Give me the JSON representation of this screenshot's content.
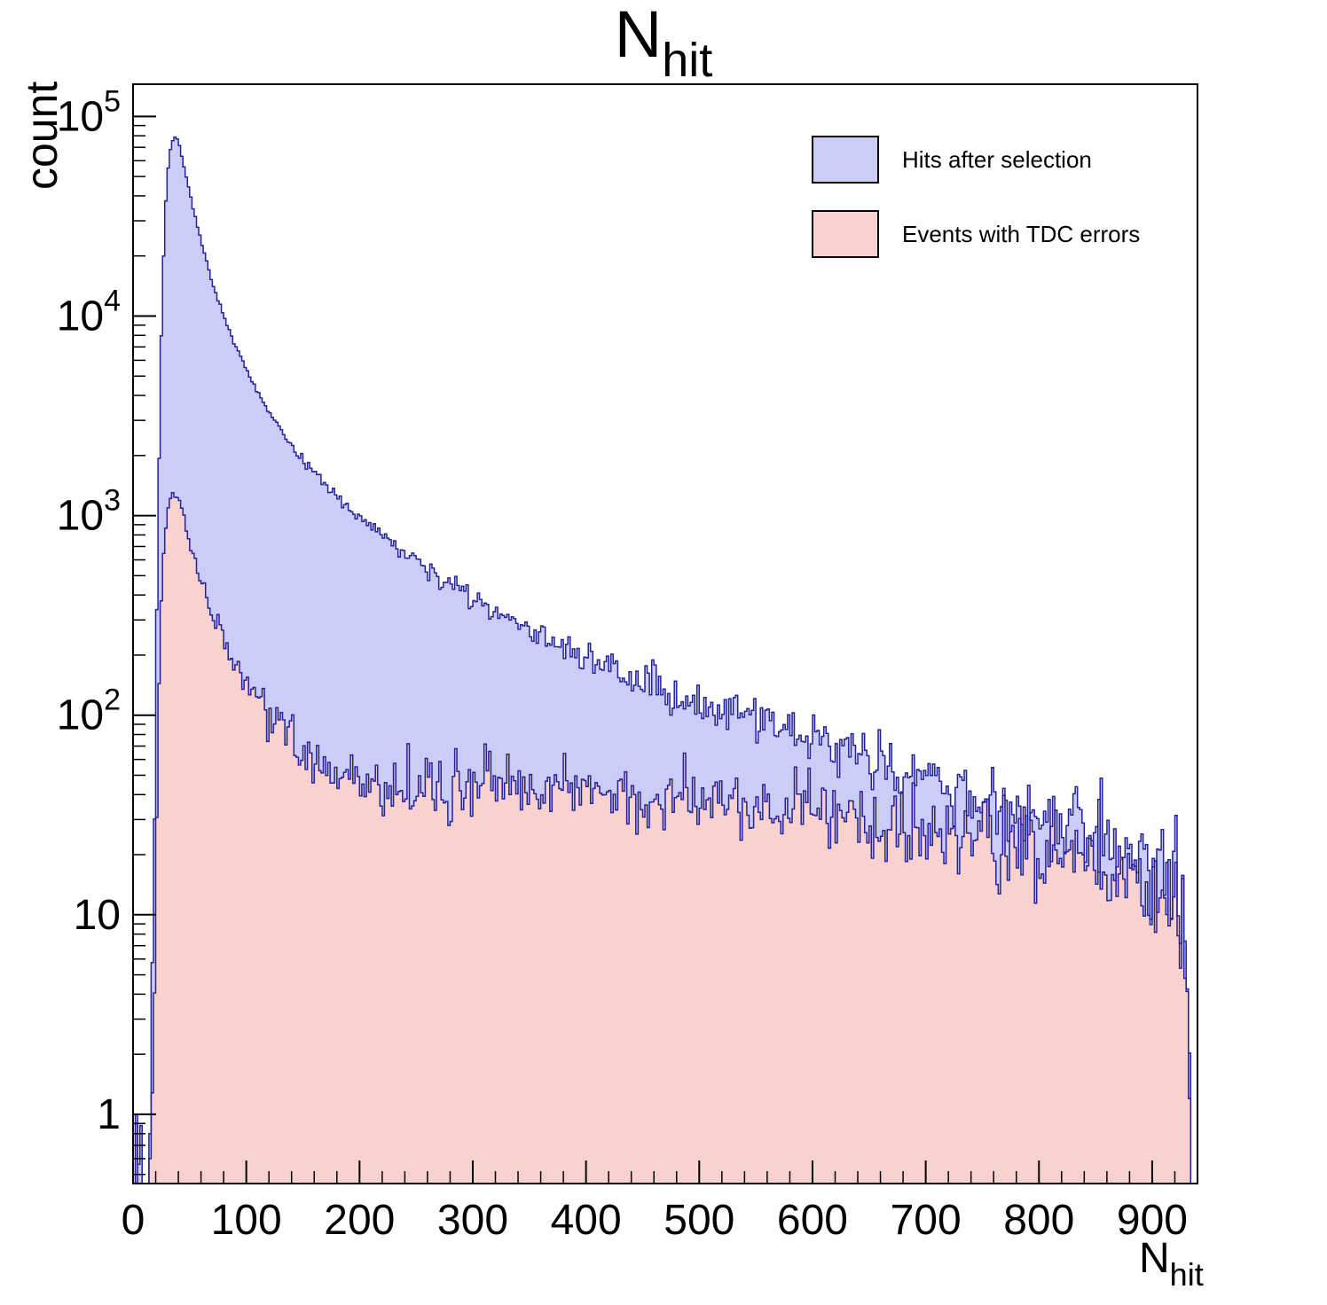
{
  "chart_data": {
    "type": "area",
    "subtype": "step_histogram",
    "title_main": "N",
    "title_sub": "hit",
    "xlabel_main": "N",
    "xlabel_sub": "hit",
    "ylabel": "count",
    "yscale": "log",
    "grid": false,
    "xlim": [
      0,
      940
    ],
    "ylim": [
      0.45,
      145000
    ],
    "x_ticks": [
      0,
      100,
      200,
      300,
      400,
      500,
      600,
      700,
      800,
      900
    ],
    "x_minor_step": 20,
    "y_ticks": [
      {
        "value": 1,
        "label": "1"
      },
      {
        "value": 10,
        "label": "10"
      },
      {
        "value": 100,
        "label": "10",
        "exp": "2"
      },
      {
        "value": 1000,
        "label": "10",
        "exp": "3"
      },
      {
        "value": 10000,
        "label": "10",
        "exp": "4"
      },
      {
        "value": 100000,
        "label": "10",
        "exp": "5"
      }
    ],
    "bin_width": 2,
    "noise": {
      "model": "poisson",
      "scale": 1.25,
      "clamp": 2.8
    },
    "legend_position": "top-right",
    "legend": [
      {
        "label": "Hits after selection",
        "fill": "#ccccf8",
        "line": "#22229b"
      },
      {
        "label": "Events with TDC errors",
        "fill": "#f9d1cf",
        "line": "#22229b"
      }
    ],
    "series": [
      {
        "name": "Hits after selection",
        "fill": "#ccccf8",
        "line": "#22229b",
        "seed": 1013,
        "anchors": [
          [
            2,
            0.45
          ],
          [
            3,
            1.0
          ],
          [
            4,
            0.45
          ],
          [
            8,
            1.1
          ],
          [
            9,
            0.45
          ],
          [
            14,
            0.45
          ],
          [
            15,
            0.8
          ],
          [
            17,
            3
          ],
          [
            19,
            30
          ],
          [
            21,
            300
          ],
          [
            23,
            2000
          ],
          [
            25,
            8000
          ],
          [
            27,
            20000
          ],
          [
            29,
            38000
          ],
          [
            31,
            55000
          ],
          [
            33,
            68000
          ],
          [
            35,
            76000
          ],
          [
            37,
            79000
          ],
          [
            39,
            77000
          ],
          [
            41,
            71000
          ],
          [
            43,
            63000
          ],
          [
            45,
            56000
          ],
          [
            47,
            50000
          ],
          [
            50,
            42000
          ],
          [
            53,
            35000
          ],
          [
            56,
            29500
          ],
          [
            60,
            24000
          ],
          [
            64,
            19500
          ],
          [
            68,
            16000
          ],
          [
            72,
            13500
          ],
          [
            76,
            11500
          ],
          [
            80,
            10000
          ],
          [
            85,
            8400
          ],
          [
            90,
            7200
          ],
          [
            95,
            6200
          ],
          [
            100,
            5400
          ],
          [
            110,
            4100
          ],
          [
            120,
            3300
          ],
          [
            130,
            2700
          ],
          [
            140,
            2250
          ],
          [
            150,
            1900
          ],
          [
            160,
            1650
          ],
          [
            170,
            1430
          ],
          [
            180,
            1250
          ],
          [
            190,
            1100
          ],
          [
            200,
            980
          ],
          [
            210,
            880
          ],
          [
            220,
            800
          ],
          [
            230,
            720
          ],
          [
            240,
            650
          ],
          [
            250,
            590
          ],
          [
            260,
            540
          ],
          [
            270,
            500
          ],
          [
            280,
            460
          ],
          [
            290,
            420
          ],
          [
            300,
            390
          ],
          [
            320,
            335
          ],
          [
            340,
            290
          ],
          [
            360,
            252
          ],
          [
            380,
            222
          ],
          [
            400,
            196
          ],
          [
            420,
            174
          ],
          [
            440,
            156
          ],
          [
            460,
            140
          ],
          [
            480,
            126
          ],
          [
            500,
            114
          ],
          [
            520,
            104
          ],
          [
            540,
            95
          ],
          [
            560,
            87
          ],
          [
            580,
            80
          ],
          [
            600,
            74
          ],
          [
            620,
            68
          ],
          [
            640,
            62
          ],
          [
            660,
            57
          ],
          [
            680,
            52
          ],
          [
            700,
            48
          ],
          [
            720,
            44
          ],
          [
            740,
            40
          ],
          [
            760,
            36
          ],
          [
            780,
            33
          ],
          [
            800,
            30
          ],
          [
            820,
            27
          ],
          [
            840,
            25
          ],
          [
            860,
            23
          ],
          [
            880,
            21
          ],
          [
            900,
            18
          ],
          [
            910,
            16
          ],
          [
            918,
            13
          ],
          [
            924,
            11
          ],
          [
            928,
            8
          ],
          [
            931,
            4
          ],
          [
            933,
            1.5
          ],
          [
            934,
            0.45
          ],
          [
            940,
            0.45
          ]
        ]
      },
      {
        "name": "Events with TDC errors",
        "fill": "#f9d1cf",
        "line": "#22229b",
        "seed": 2027,
        "anchors": [
          [
            2,
            0.45
          ],
          [
            3,
            0.9
          ],
          [
            4,
            0.45
          ],
          [
            14,
            0.45
          ],
          [
            15,
            0.6
          ],
          [
            17,
            1.5
          ],
          [
            19,
            8
          ],
          [
            21,
            40
          ],
          [
            23,
            150
          ],
          [
            25,
            380
          ],
          [
            27,
            650
          ],
          [
            29,
            900
          ],
          [
            31,
            1100
          ],
          [
            33,
            1230
          ],
          [
            35,
            1300
          ],
          [
            37,
            1310
          ],
          [
            39,
            1260
          ],
          [
            41,
            1160
          ],
          [
            43,
            1050
          ],
          [
            45,
            950
          ],
          [
            48,
            820
          ],
          [
            51,
            710
          ],
          [
            54,
            620
          ],
          [
            58,
            520
          ],
          [
            62,
            440
          ],
          [
            66,
            380
          ],
          [
            70,
            330
          ],
          [
            75,
            280
          ],
          [
            80,
            240
          ],
          [
            85,
            210
          ],
          [
            90,
            185
          ],
          [
            95,
            165
          ],
          [
            100,
            145
          ],
          [
            110,
            118
          ],
          [
            120,
            98
          ],
          [
            130,
            84
          ],
          [
            140,
            73
          ],
          [
            150,
            65
          ],
          [
            160,
            59
          ],
          [
            170,
            55
          ],
          [
            180,
            52
          ],
          [
            190,
            50
          ],
          [
            200,
            48
          ],
          [
            220,
            46
          ],
          [
            240,
            44
          ],
          [
            260,
            43
          ],
          [
            280,
            43
          ],
          [
            300,
            44
          ],
          [
            330,
            44
          ],
          [
            360,
            44
          ],
          [
            390,
            43
          ],
          [
            420,
            42
          ],
          [
            450,
            41
          ],
          [
            480,
            40
          ],
          [
            510,
            38
          ],
          [
            540,
            36
          ],
          [
            570,
            34
          ],
          [
            600,
            32
          ],
          [
            630,
            30
          ],
          [
            660,
            29
          ],
          [
            690,
            27
          ],
          [
            720,
            25
          ],
          [
            750,
            23
          ],
          [
            780,
            21
          ],
          [
            810,
            20
          ],
          [
            840,
            18
          ],
          [
            870,
            16
          ],
          [
            900,
            15
          ],
          [
            910,
            14
          ],
          [
            918,
            12
          ],
          [
            924,
            9
          ],
          [
            928,
            6
          ],
          [
            931,
            3
          ],
          [
            933,
            1.2
          ],
          [
            934,
            0.45
          ],
          [
            940,
            0.45
          ]
        ]
      }
    ]
  }
}
